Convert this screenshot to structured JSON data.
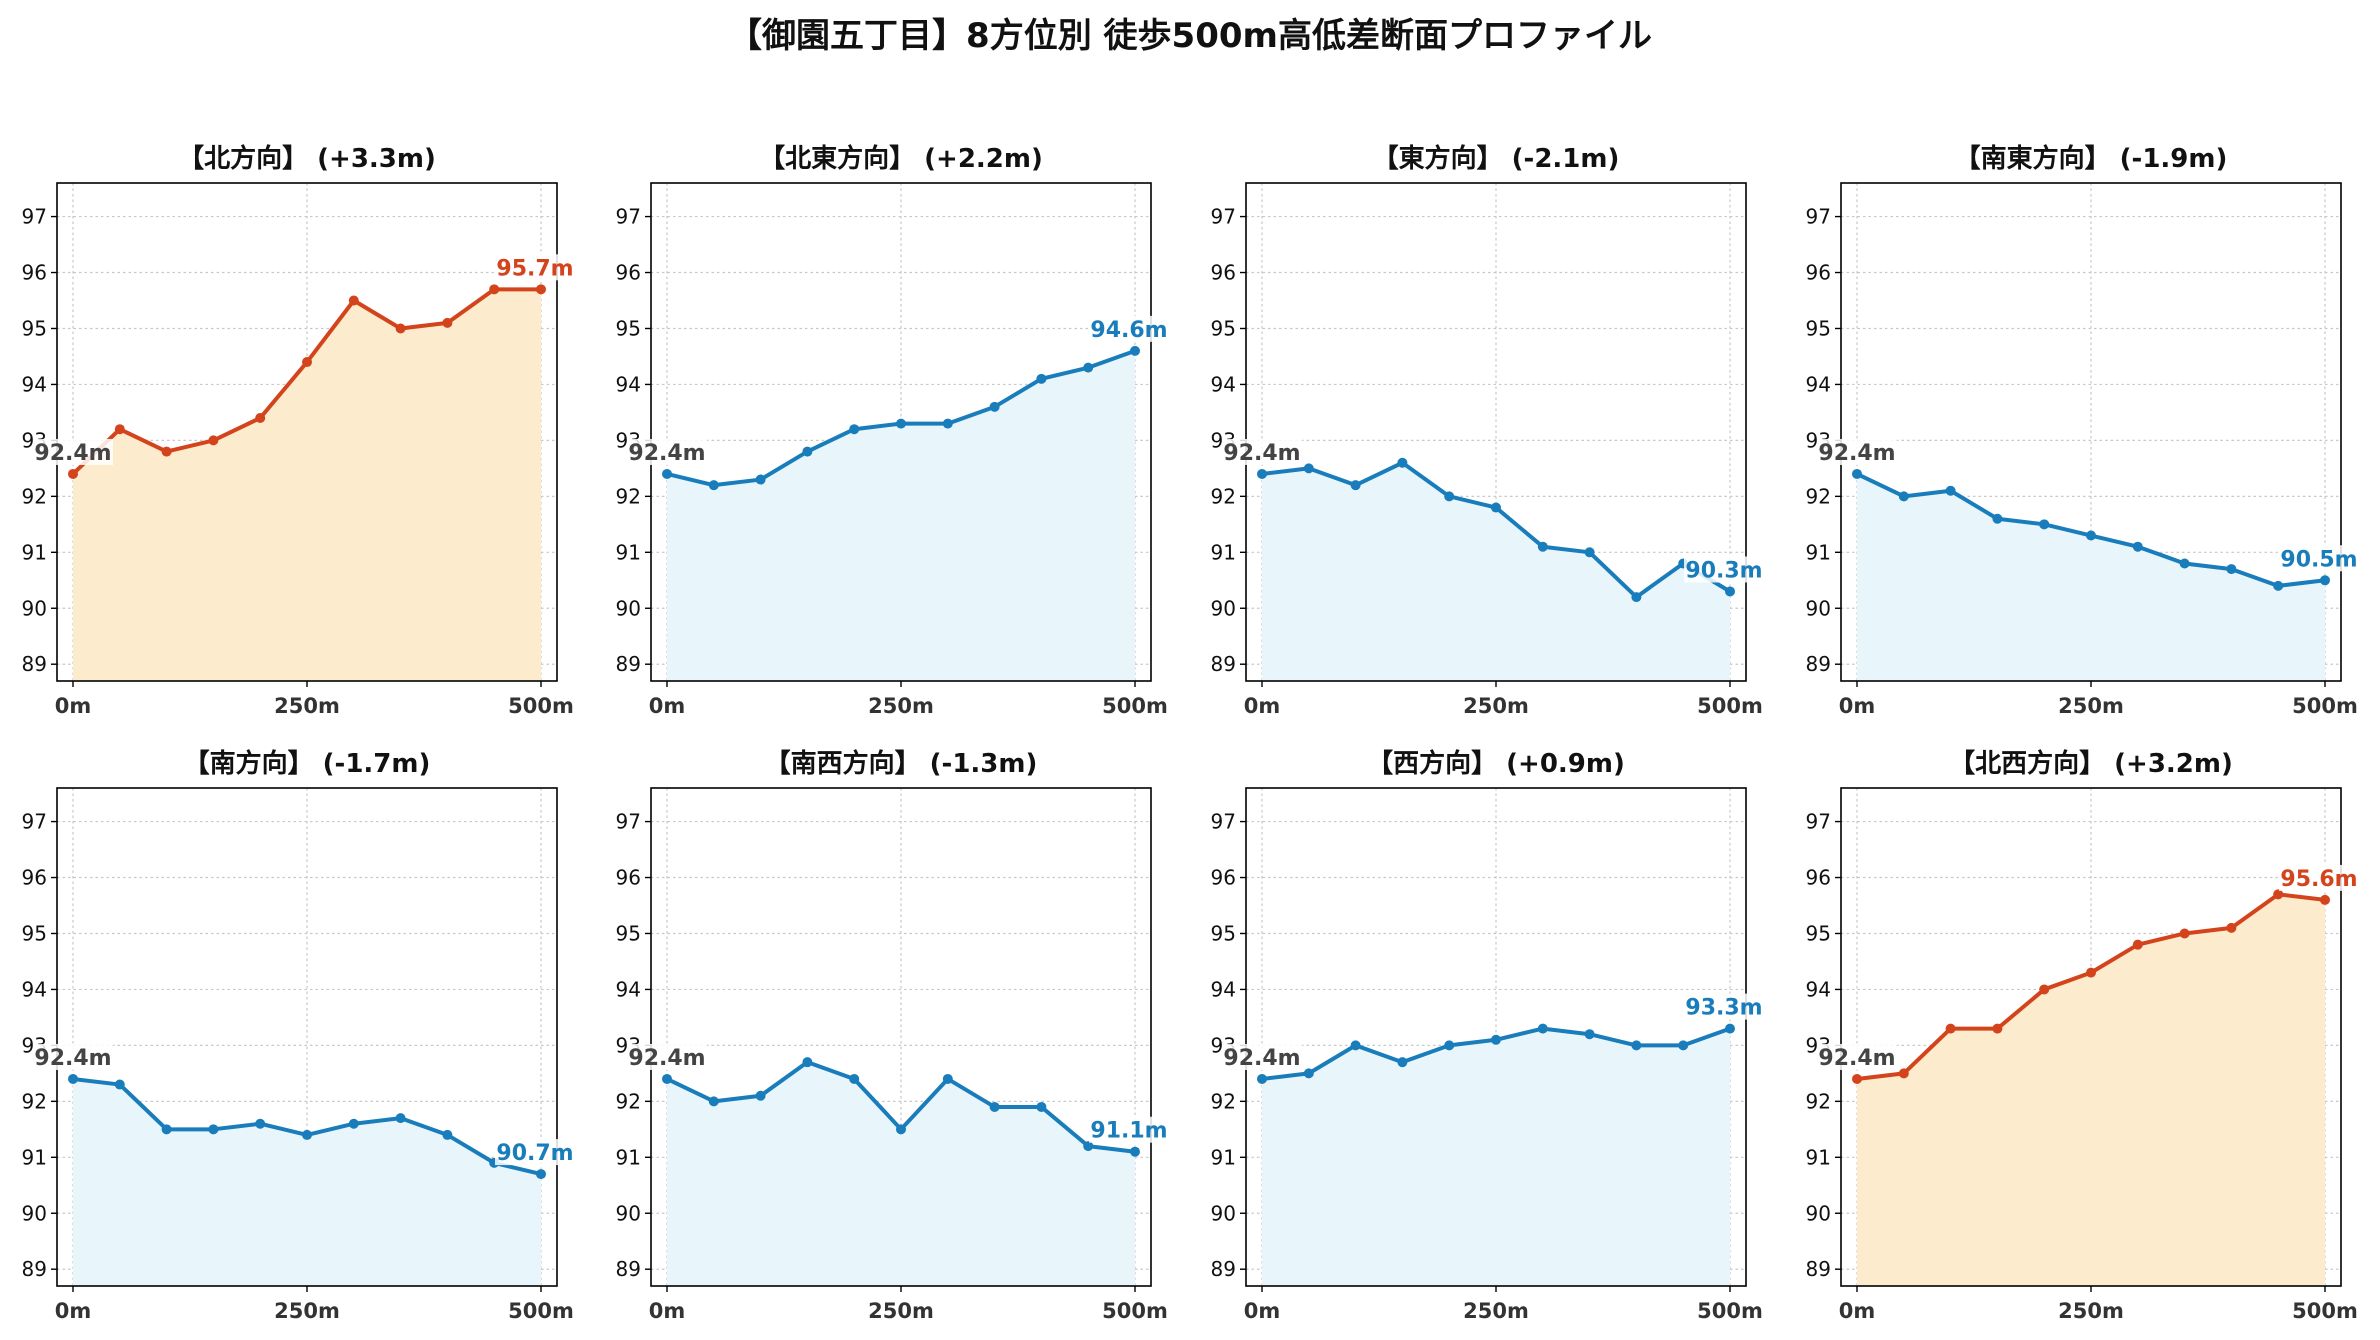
{
  "title": "【御園五丁目】8方位別 徒歩500m高低差断面プロファイル",
  "colors": {
    "uphill_line": "#d4441c",
    "uphill_fill": "#fdebcd",
    "other_line": "#1a7dbb",
    "other_fill": "#e8f6fb",
    "start_label": "#444444"
  },
  "chart_data": [
    {
      "type": "line",
      "title": "【北方向】 (+3.3m)",
      "trend": "up",
      "x": [
        0,
        50,
        100,
        150,
        200,
        250,
        300,
        350,
        400,
        450,
        500
      ],
      "y": [
        92.4,
        93.2,
        92.8,
        93.0,
        93.4,
        94.4,
        95.5,
        95.0,
        95.1,
        95.7,
        95.7
      ],
      "start_label": "92.4m",
      "end_label": "95.7m"
    },
    {
      "type": "line",
      "title": "【北東方向】 (+2.2m)",
      "trend": "flat",
      "x": [
        0,
        50,
        100,
        150,
        200,
        250,
        300,
        350,
        400,
        450,
        500
      ],
      "y": [
        92.4,
        92.2,
        92.3,
        92.8,
        93.2,
        93.3,
        93.3,
        93.6,
        94.1,
        94.3,
        94.6
      ],
      "start_label": "92.4m",
      "end_label": "94.6m"
    },
    {
      "type": "line",
      "title": "【東方向】 (-2.1m)",
      "trend": "flat",
      "x": [
        0,
        50,
        100,
        150,
        200,
        250,
        300,
        350,
        400,
        450,
        500
      ],
      "y": [
        92.4,
        92.5,
        92.2,
        92.6,
        92.0,
        91.8,
        91.1,
        91.0,
        90.2,
        90.8,
        90.3
      ],
      "start_label": "92.4m",
      "end_label": "90.3m"
    },
    {
      "type": "line",
      "title": "【南東方向】 (-1.9m)",
      "trend": "flat",
      "x": [
        0,
        50,
        100,
        150,
        200,
        250,
        300,
        350,
        400,
        450,
        500
      ],
      "y": [
        92.4,
        92.0,
        92.1,
        91.6,
        91.5,
        91.3,
        91.1,
        90.8,
        90.7,
        90.4,
        90.5
      ],
      "start_label": "92.4m",
      "end_label": "90.5m"
    },
    {
      "type": "line",
      "title": "【南方向】 (-1.7m)",
      "trend": "flat",
      "x": [
        0,
        50,
        100,
        150,
        200,
        250,
        300,
        350,
        400,
        450,
        500
      ],
      "y": [
        92.4,
        92.3,
        91.5,
        91.5,
        91.6,
        91.4,
        91.6,
        91.7,
        91.4,
        90.9,
        90.7
      ],
      "start_label": "92.4m",
      "end_label": "90.7m"
    },
    {
      "type": "line",
      "title": "【南西方向】 (-1.3m)",
      "trend": "flat",
      "x": [
        0,
        50,
        100,
        150,
        200,
        250,
        300,
        350,
        400,
        450,
        500
      ],
      "y": [
        92.4,
        92.0,
        92.1,
        92.7,
        92.4,
        91.5,
        92.4,
        91.9,
        91.9,
        91.2,
        91.1
      ],
      "start_label": "92.4m",
      "end_label": "91.1m"
    },
    {
      "type": "line",
      "title": "【西方向】 (+0.9m)",
      "trend": "flat",
      "x": [
        0,
        50,
        100,
        150,
        200,
        250,
        300,
        350,
        400,
        450,
        500
      ],
      "y": [
        92.4,
        92.5,
        93.0,
        92.7,
        93.0,
        93.1,
        93.3,
        93.2,
        93.0,
        93.0,
        93.3
      ],
      "start_label": "92.4m",
      "end_label": "93.3m"
    },
    {
      "type": "line",
      "title": "【北西方向】 (+3.2m)",
      "trend": "up",
      "x": [
        0,
        50,
        100,
        150,
        200,
        250,
        300,
        350,
        400,
        450,
        500
      ],
      "y": [
        92.4,
        92.5,
        93.3,
        93.3,
        94.0,
        94.3,
        94.8,
        95.0,
        95.1,
        95.7,
        95.6
      ],
      "start_label": "92.4m",
      "end_label": "95.6m"
    }
  ],
  "axes": {
    "xlim": [
      0,
      500
    ],
    "ylim": [
      88.7,
      97.6
    ],
    "x_ticks": [
      0,
      250,
      500
    ],
    "x_tick_labels": [
      "0m",
      "250m",
      "500m"
    ],
    "y_ticks": [
      89,
      90,
      91,
      92,
      93,
      94,
      95,
      96,
      97
    ],
    "y_tick_labels": [
      "89",
      "90",
      "91",
      "92",
      "93",
      "94",
      "95",
      "96",
      "97"
    ],
    "grid": true
  }
}
